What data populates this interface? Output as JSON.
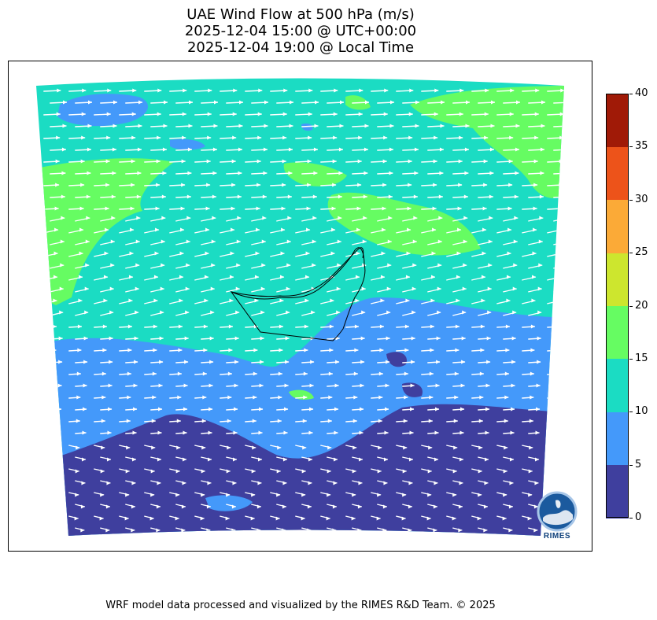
{
  "title": {
    "line1": "UAE Wind Flow at 500 hPa (m/s)",
    "line2": "2025-12-04 15:00 @ UTC+00:00",
    "line3": "2025-12-04 19:00 @ Local Time"
  },
  "colorbar": {
    "min": 0,
    "max": 40,
    "ticks": [
      "0",
      "5",
      "10",
      "15",
      "20",
      "25",
      "30",
      "35",
      "40"
    ],
    "colors": [
      "#3f3f9e",
      "#4499fa",
      "#1bdcc3",
      "#66fc62",
      "#cde62e",
      "#fbaa37",
      "#ed531a",
      "#a01a07"
    ]
  },
  "footer": "WRF model data processed and visualized by the RIMES R&D Team. © 2025",
  "logo": {
    "text": "RIMES",
    "icon": "rimes-globe-logo-icon"
  },
  "map": {
    "region": "UAE",
    "dominant_wind_direction": "westerly",
    "arrow_color": "#ffffff"
  }
}
